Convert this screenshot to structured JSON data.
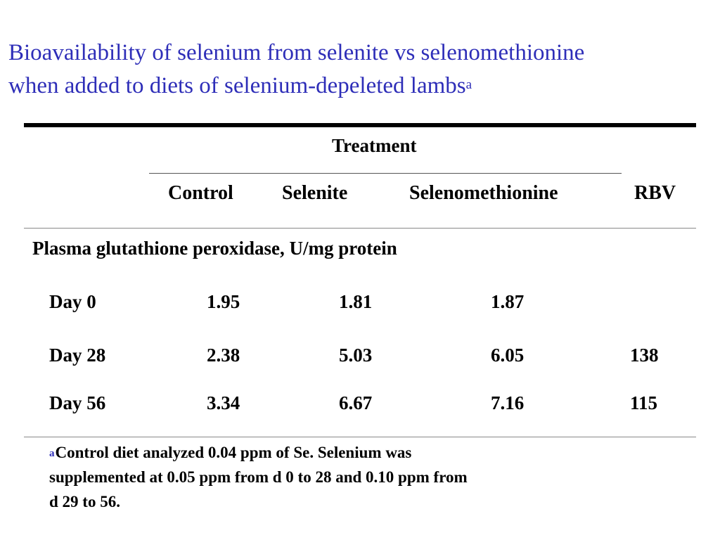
{
  "title": {
    "line1": "Bioavailability of selenium from selenite vs selenomethionine",
    "line2": "when added to diets of selenium-depeleted lambs",
    "superscript": "a"
  },
  "table": {
    "group_header": "Treatment",
    "columns": [
      "Control",
      "Selenite",
      "Selenomethionine",
      "RBV"
    ],
    "section_label": "Plasma glutathione peroxidase, U/mg protein",
    "rows": [
      {
        "label": "Day 0",
        "control": "1.95",
        "selenite": "1.81",
        "selenomethionine": "1.87",
        "rbv": ""
      },
      {
        "label": "Day 28",
        "control": "2.38",
        "selenite": "5.03",
        "selenomethionine": "6.05",
        "rbv": "138"
      },
      {
        "label": "Day 56",
        "control": "3.34",
        "selenite": "6.67",
        "selenomethionine": "7.16",
        "rbv": "115"
      }
    ]
  },
  "footnote": {
    "marker": "a",
    "line1": "Control diet analyzed 0.04 ppm of Se.  Selenium was",
    "line2": "supplemented at 0.05 ppm from d 0 to 28 and 0.10 ppm from",
    "line3": "d 29 to 56."
  }
}
